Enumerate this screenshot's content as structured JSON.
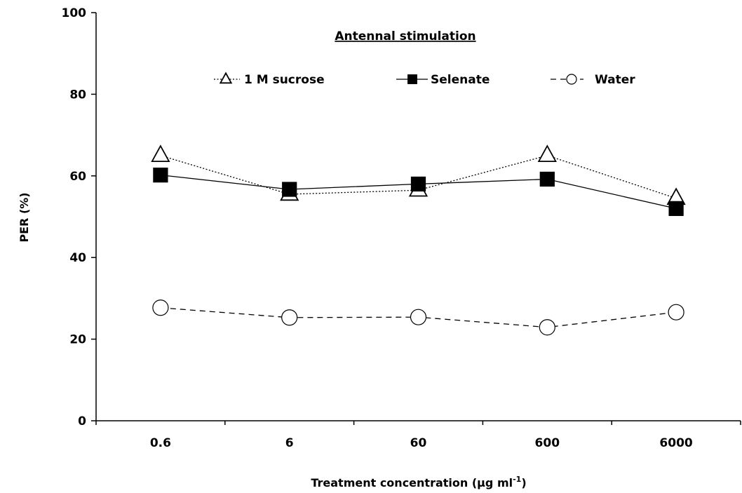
{
  "chart_data": {
    "type": "line",
    "title": "Antennal stimulation",
    "xlabel": "Treatment concentration (µg ml",
    "xlabel_superscript": "-1",
    "xlabel_suffix": ")",
    "ylabel": "PER (%)",
    "categories": [
      "0.6",
      "6",
      "60",
      "600",
      "6000"
    ],
    "ylim": [
      0,
      100
    ],
    "yticks": [
      "0",
      "20",
      "40",
      "60",
      "80",
      "100"
    ],
    "legend_position": "top",
    "series": [
      {
        "name": "1 M sucrose",
        "values": [
          65,
          55.5,
          56.5,
          65,
          54.5
        ],
        "marker": "open-triangle",
        "line_style": "dotted",
        "color": "#000000"
      },
      {
        "name": "Selenate",
        "values": [
          60.2,
          56.7,
          58,
          59.2,
          52
        ],
        "marker": "filled-square",
        "line_style": "solid",
        "color": "#000000"
      },
      {
        "name": "Water",
        "values": [
          27.7,
          25.3,
          25.4,
          22.9,
          26.6
        ],
        "marker": "open-circle",
        "line_style": "dashed",
        "color": "#000000"
      }
    ]
  }
}
